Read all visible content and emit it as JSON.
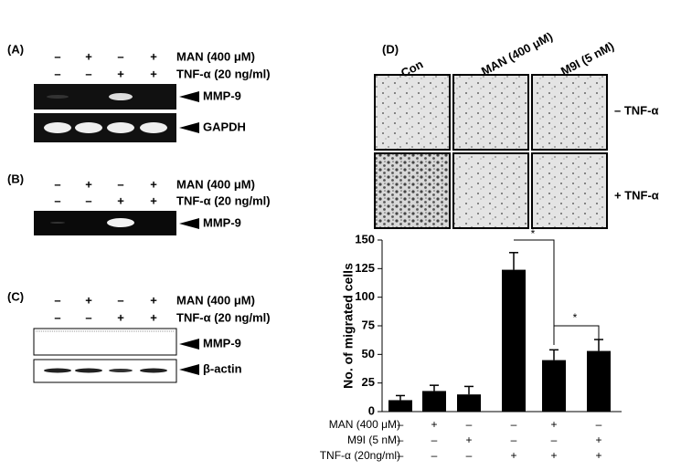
{
  "panels": {
    "A": {
      "label": "(A)",
      "treatments": [
        {
          "name": "MAN (400 μM)",
          "signs": [
            "–",
            "+",
            "–",
            "+"
          ]
        },
        {
          "name": "TNF-α (20 ng/ml)",
          "signs": [
            "–",
            "–",
            "+",
            "+"
          ]
        }
      ],
      "bands": [
        "MMP-9",
        "GAPDH"
      ]
    },
    "B": {
      "label": "(B)",
      "treatments": [
        {
          "name": "MAN (400 μM)",
          "signs": [
            "–",
            "+",
            "–",
            "+"
          ]
        },
        {
          "name": "TNF-α (20 ng/ml)",
          "signs": [
            "–",
            "–",
            "+",
            "+"
          ]
        }
      ],
      "bands": [
        "MMP-9"
      ]
    },
    "C": {
      "label": "(C)",
      "treatments": [
        {
          "name": "MAN (400 μM)",
          "signs": [
            "–",
            "+",
            "–",
            "+"
          ]
        },
        {
          "name": "TNF-α (20 ng/ml)",
          "signs": [
            "–",
            "–",
            "+",
            "+"
          ]
        }
      ],
      "bands": [
        "MMP-9",
        "β-actin"
      ]
    },
    "D": {
      "label": "(D)",
      "columns": [
        "Con",
        "MAN (400 μM)",
        "M9I (5 nM)"
      ],
      "rows": [
        "– TNF-α",
        "+ TNF-α"
      ]
    }
  },
  "chart_data": {
    "type": "bar",
    "y_label": "No. of migrated cells",
    "values": [
      10,
      18,
      15,
      124,
      45,
      53
    ],
    "errors": [
      4,
      5,
      7,
      15,
      9,
      10
    ],
    "color": "#000000",
    "ylim": [
      0,
      150
    ],
    "yticks": [
      0,
      25,
      50,
      75,
      100,
      125,
      150
    ],
    "significance": [
      "*",
      "*"
    ],
    "treatments": [
      {
        "name": "MAN (400 μM)",
        "signs": [
          "–",
          "+",
          "–",
          "–",
          "+",
          "–"
        ]
      },
      {
        "name": "M9I (5 nM)",
        "signs": [
          "–",
          "–",
          "+",
          "–",
          "–",
          "+"
        ]
      },
      {
        "name": "TNF-α (20ng/ml)",
        "signs": [
          "–",
          "–",
          "–",
          "+",
          "+",
          "+"
        ]
      }
    ]
  }
}
